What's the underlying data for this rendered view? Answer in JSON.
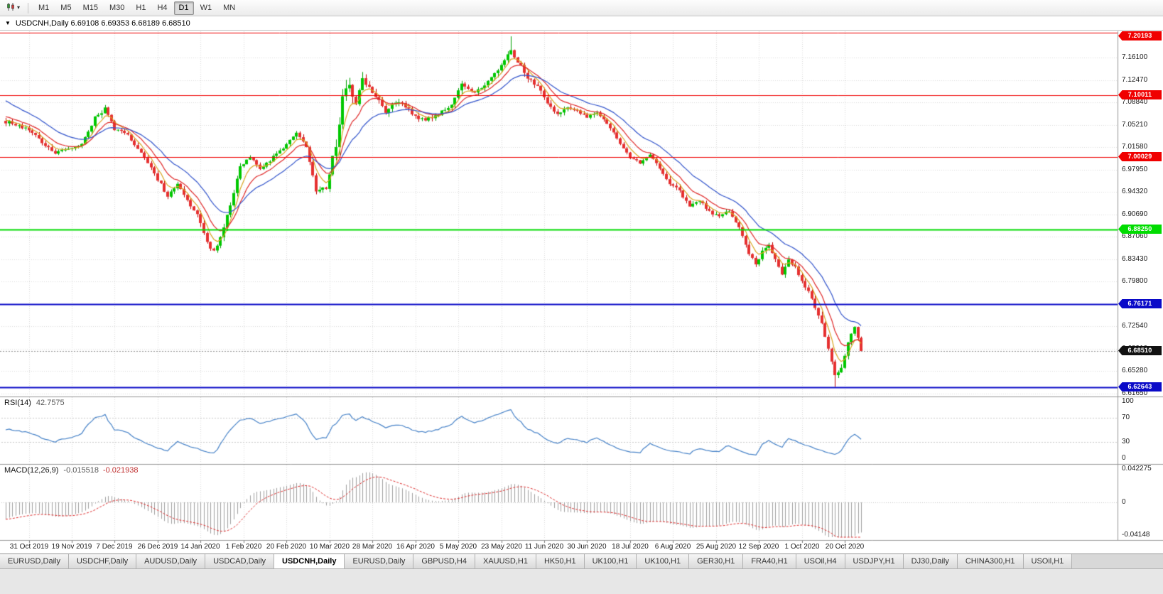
{
  "window": {
    "title": "USDCNH,Daily 6.69108 6.69353 6.68189 6.68510",
    "symbol": "USDCNH",
    "period": "Daily",
    "ohlc": {
      "open": "6.69108",
      "high": "6.69353",
      "low": "6.68189",
      "close": "6.68510"
    }
  },
  "toolbar": {
    "timeframes": [
      "M1",
      "M5",
      "M15",
      "M30",
      "H1",
      "H4",
      "D1",
      "W1",
      "MN"
    ],
    "active": "D1",
    "chart_type_icon": "candlestick-chart-icon"
  },
  "price_axis": {
    "labels": [
      "7.16100",
      "7.12470",
      "7.08840",
      "7.05210",
      "7.01580",
      "6.97950",
      "6.94320",
      "6.90690",
      "6.87060",
      "6.83430",
      "6.79800",
      "6.76170",
      "6.72540",
      "6.68910",
      "6.65280",
      "6.61650"
    ]
  },
  "price_lines": [
    {
      "price": 7.20193,
      "label": "7.20193",
      "color": "#f00000",
      "width": 1
    },
    {
      "price": 7.10011,
      "label": "7.10011",
      "color": "#f00000",
      "width": 1
    },
    {
      "price": 7.00029,
      "label": "7.00029",
      "color": "#f00000",
      "width": 1
    },
    {
      "price": 6.8825,
      "label": "6.88250",
      "color": "#00dc00",
      "width": 2
    },
    {
      "price": 6.76171,
      "label": "6.76171",
      "color": "#0a0ac8",
      "width": 2
    },
    {
      "price": 6.62643,
      "label": "6.62643",
      "color": "#0a0ac8",
      "width": 2
    }
  ],
  "current_price": {
    "price": 6.6851,
    "label": "6.68510",
    "badge_color": "#111111",
    "line_color": "#909090"
  },
  "rsi_panel": {
    "name": "RSI(14)",
    "value": "42.7575",
    "levels": [
      "100",
      "70",
      "30",
      "0"
    ],
    "dashed_levels": [
      70,
      30
    ],
    "line_color": "#4682c8"
  },
  "macd_panel": {
    "name": "MACD(12,26,9)",
    "macd_value": "-0.015518",
    "signal_value": "-0.021938",
    "axis": [
      {
        "label": "0.042275",
        "v": 0.042275
      },
      {
        "label": "0",
        "v": 0
      },
      {
        "label": "-0.04148",
        "v": -0.04148
      }
    ],
    "histogram_color": "#a0a0a0",
    "signal_color": "#e03030"
  },
  "date_axis": [
    "31 Oct 2019",
    "19 Nov 2019",
    "7 Dec 2019",
    "26 Dec 2019",
    "14 Jan 2020",
    "1 Feb 2020",
    "20 Feb 2020",
    "10 Mar 2020",
    "28 Mar 2020",
    "16 Apr 2020",
    "5 May 2020",
    "23 May 2020",
    "11 Jun 2020",
    "30 Jun 2020",
    "18 Jul 2020",
    "6 Aug 2020",
    "25 Aug 2020",
    "12 Sep 2020",
    "1 Oct 2020",
    "20 Oct 2020"
  ],
  "bottom_tabs": {
    "items": [
      "EURUSD,Daily",
      "USDCHF,Daily",
      "AUDUSD,Daily",
      "USDCAD,Daily",
      "USDCNH,Daily",
      "EURUSD,Daily",
      "GBPUSD,H4",
      "XAUUSD,H1",
      "HK50,H1",
      "UK100,H1",
      "UK100,H1",
      "GER30,H1",
      "FRA40,H1",
      "USOil,H4",
      "USDJPY,H1",
      "DJ30,Daily",
      "CHINA300,H1",
      "USOil,H1"
    ],
    "active_index": 4
  },
  "chart_data": {
    "type": "candlestick",
    "symbol": "USDCNH",
    "timeframe": "Daily",
    "seed": 7,
    "candle_count": 260,
    "last_close": 6.6851,
    "up_color": "#00c800",
    "down_color": "#e63030",
    "up_wick_color": "#00a000",
    "down_wick_color": "#c00000",
    "grid_color": "#dadada",
    "key_extremes": [
      {
        "index": 153,
        "high": 7.196
      },
      {
        "index": 251,
        "low": 6.627
      }
    ],
    "anchors": [
      [
        0,
        7.058,
        0.01
      ],
      [
        7,
        7.045,
        0.01
      ],
      [
        11,
        7.025,
        0.01
      ],
      [
        15,
        7.005,
        0.01
      ],
      [
        19,
        7.015,
        0.009
      ],
      [
        23,
        7.02,
        0.009
      ],
      [
        27,
        7.065,
        0.012
      ],
      [
        30,
        7.078,
        0.012
      ],
      [
        33,
        7.045,
        0.01
      ],
      [
        37,
        7.035,
        0.009
      ],
      [
        41,
        7.005,
        0.009
      ],
      [
        45,
        6.975,
        0.009
      ],
      [
        49,
        6.935,
        0.01
      ],
      [
        52,
        6.955,
        0.01
      ],
      [
        55,
        6.93,
        0.01
      ],
      [
        58,
        6.905,
        0.012
      ],
      [
        61,
        6.86,
        0.015
      ],
      [
        63,
        6.845,
        0.015
      ],
      [
        65,
        6.87,
        0.013
      ],
      [
        68,
        6.925,
        0.012
      ],
      [
        71,
        6.985,
        0.012
      ],
      [
        74,
        7.0,
        0.01
      ],
      [
        77,
        6.98,
        0.01
      ],
      [
        81,
        7.0,
        0.009
      ],
      [
        85,
        7.02,
        0.009
      ],
      [
        88,
        7.04,
        0.01
      ],
      [
        91,
        7.015,
        0.01
      ],
      [
        94,
        6.945,
        0.013
      ],
      [
        97,
        6.95,
        0.015
      ],
      [
        100,
        7.02,
        0.025
      ],
      [
        102,
        7.09,
        0.035
      ],
      [
        104,
        7.115,
        0.03
      ],
      [
        106,
        7.085,
        0.028
      ],
      [
        108,
        7.125,
        0.025
      ],
      [
        111,
        7.105,
        0.02
      ],
      [
        115,
        7.075,
        0.015
      ],
      [
        119,
        7.09,
        0.013
      ],
      [
        123,
        7.07,
        0.012
      ],
      [
        127,
        7.06,
        0.011
      ],
      [
        131,
        7.07,
        0.011
      ],
      [
        135,
        7.085,
        0.012
      ],
      [
        138,
        7.12,
        0.015
      ],
      [
        141,
        7.105,
        0.013
      ],
      [
        144,
        7.112,
        0.012
      ],
      [
        147,
        7.13,
        0.013
      ],
      [
        150,
        7.15,
        0.014
      ],
      [
        153,
        7.172,
        0.016
      ],
      [
        155,
        7.155,
        0.014
      ],
      [
        158,
        7.13,
        0.013
      ],
      [
        161,
        7.115,
        0.012
      ],
      [
        164,
        7.085,
        0.012
      ],
      [
        167,
        7.07,
        0.011
      ],
      [
        170,
        7.08,
        0.01
      ],
      [
        173,
        7.075,
        0.01
      ],
      [
        176,
        7.065,
        0.01
      ],
      [
        179,
        7.072,
        0.009
      ],
      [
        182,
        7.055,
        0.009
      ],
      [
        185,
        7.03,
        0.009
      ],
      [
        189,
        7.0,
        0.01
      ],
      [
        192,
        6.99,
        0.009
      ],
      [
        195,
        7.005,
        0.009
      ],
      [
        198,
        6.98,
        0.01
      ],
      [
        201,
        6.955,
        0.011
      ],
      [
        204,
        6.945,
        0.01
      ],
      [
        207,
        6.92,
        0.011
      ],
      [
        210,
        6.93,
        0.01
      ],
      [
        213,
        6.912,
        0.01
      ],
      [
        216,
        6.905,
        0.01
      ],
      [
        219,
        6.912,
        0.01
      ],
      [
        222,
        6.885,
        0.011
      ],
      [
        225,
        6.845,
        0.013
      ],
      [
        227,
        6.828,
        0.012
      ],
      [
        229,
        6.845,
        0.011
      ],
      [
        231,
        6.858,
        0.011
      ],
      [
        233,
        6.835,
        0.011
      ],
      [
        235,
        6.812,
        0.012
      ],
      [
        237,
        6.835,
        0.011
      ],
      [
        239,
        6.82,
        0.011
      ],
      [
        241,
        6.795,
        0.012
      ],
      [
        243,
        6.78,
        0.012
      ],
      [
        245,
        6.755,
        0.013
      ],
      [
        247,
        6.73,
        0.013
      ],
      [
        249,
        6.69,
        0.014
      ],
      [
        251,
        6.645,
        0.015
      ],
      [
        253,
        6.66,
        0.013
      ],
      [
        255,
        6.7,
        0.013
      ],
      [
        257,
        6.722,
        0.012
      ],
      [
        258,
        6.705,
        0.011
      ],
      [
        259,
        6.685,
        0.01
      ]
    ],
    "moving_averages": [
      {
        "period": 5,
        "color": "#d9a520",
        "start": 7.062
      },
      {
        "period": 10,
        "color": "#e02828",
        "start": 7.068
      },
      {
        "period": 21,
        "color": "#3355cc",
        "start": 7.095
      }
    ]
  }
}
